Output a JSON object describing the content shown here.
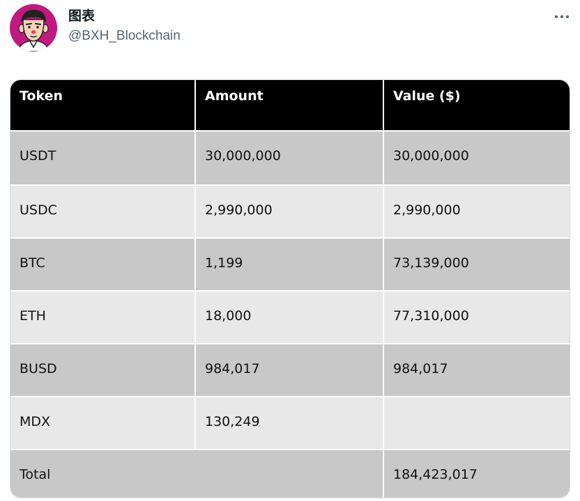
{
  "tweet": {
    "display_name": "图表",
    "handle": "@BXH_Blockchain",
    "more_icon": "more-options-icon",
    "avatar_icon": "avatar-illustration",
    "avatar_bg": "#c2187f"
  },
  "table": {
    "headers": [
      "Token",
      "Amount",
      "Value ($)"
    ],
    "rows": [
      {
        "token": "USDT",
        "amount": "30,000,000",
        "value": "30,000,000"
      },
      {
        "token": "USDC",
        "amount": "2,990,000",
        "value": "2,990,000"
      },
      {
        "token": "BTC",
        "amount": "1,199",
        "value": "73,139,000"
      },
      {
        "token": "ETH",
        "amount": "18,000",
        "value": "77,310,000"
      },
      {
        "token": "BUSD",
        "amount": "984,017",
        "value": "984,017"
      },
      {
        "token": "MDX",
        "amount": "130,249",
        "value": ""
      }
    ],
    "total": {
      "label": "Total",
      "value": "184,423,017"
    },
    "colors": {
      "header_bg": "#000000",
      "row_dark": "#c8c8c8",
      "row_light": "#e8e8e8"
    }
  }
}
